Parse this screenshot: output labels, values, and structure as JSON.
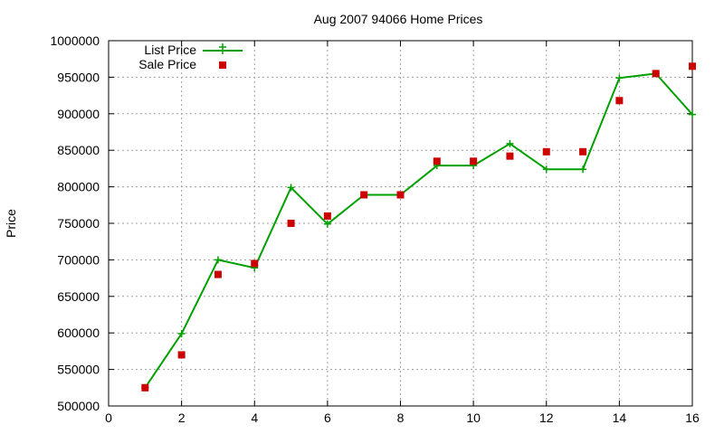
{
  "chart_data": {
    "type": "line",
    "title": "Aug 2007 94066 Home Prices",
    "xlabel": "",
    "ylabel": "Price",
    "xlim": [
      0,
      16
    ],
    "ylim": [
      500000,
      1000000
    ],
    "x_ticks": [
      "0",
      "2",
      "4",
      "6",
      "8",
      "10",
      "12",
      "14",
      "16"
    ],
    "y_ticks": [
      "500000",
      "550000",
      "600000",
      "650000",
      "700000",
      "750000",
      "800000",
      "850000",
      "900000",
      "950000",
      "1000000"
    ],
    "grid": true,
    "legend_position": "top-left",
    "series": [
      {
        "name": "List Price",
        "style": "line-with-plus-markers",
        "color": "#00a000",
        "x": [
          1,
          2,
          3,
          4,
          5,
          6,
          7,
          8,
          9,
          10,
          11,
          12,
          13,
          14,
          15,
          16
        ],
        "y": [
          525000,
          599000,
          700000,
          689000,
          799000,
          749000,
          789000,
          789000,
          829000,
          829000,
          859000,
          824000,
          824000,
          949000,
          955000,
          899000
        ]
      },
      {
        "name": "Sale Price",
        "style": "square-markers",
        "color": "#cc0000",
        "x": [
          1,
          2,
          3,
          4,
          5,
          6,
          7,
          8,
          9,
          10,
          11,
          12,
          13,
          14,
          15,
          16
        ],
        "y": [
          525000,
          570000,
          680000,
          695000,
          750000,
          760000,
          789000,
          789000,
          835000,
          835000,
          842000,
          848000,
          848000,
          918000,
          955000,
          965000
        ]
      }
    ]
  }
}
